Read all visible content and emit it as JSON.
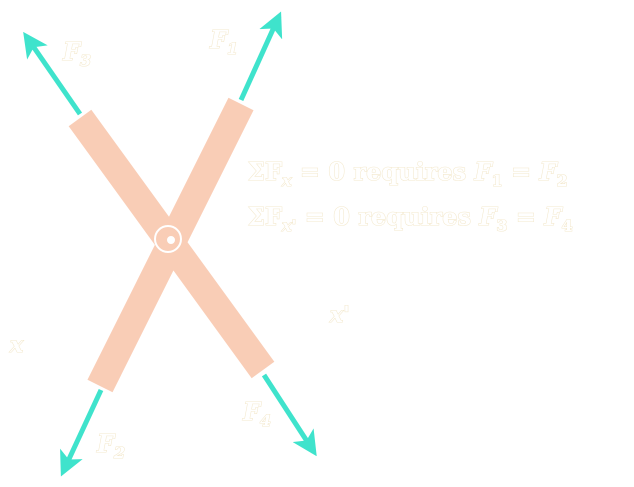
{
  "colors": {
    "member_fill": "#f9cdb6",
    "member_outline": "#f6b79a",
    "force_arrow": "#3fe3cc",
    "label_outline": "#f3e8cc"
  },
  "forces": {
    "f1_label": "F",
    "f1_sub": "1",
    "f2_label": "F",
    "f2_sub": "2",
    "f3_label": "F",
    "f3_sub": "3",
    "f4_label": "F",
    "f4_sub": "4"
  },
  "equations": {
    "eq1": {
      "sum": "ΣF",
      "axis": "x",
      "text": " = 0 requires ",
      "lhs": "F",
      "lhs_sub": "1",
      "eq": " = ",
      "rhs": "F",
      "rhs_sub": "2"
    },
    "eq2": {
      "sum": "ΣF",
      "axis": "x'",
      "text": " = 0 requires ",
      "lhs": "F",
      "lhs_sub": "3",
      "eq": " = ",
      "rhs": "F",
      "rhs_sub": "4"
    }
  },
  "axes": {
    "x_label": "x",
    "x_prime_label": "x'"
  }
}
